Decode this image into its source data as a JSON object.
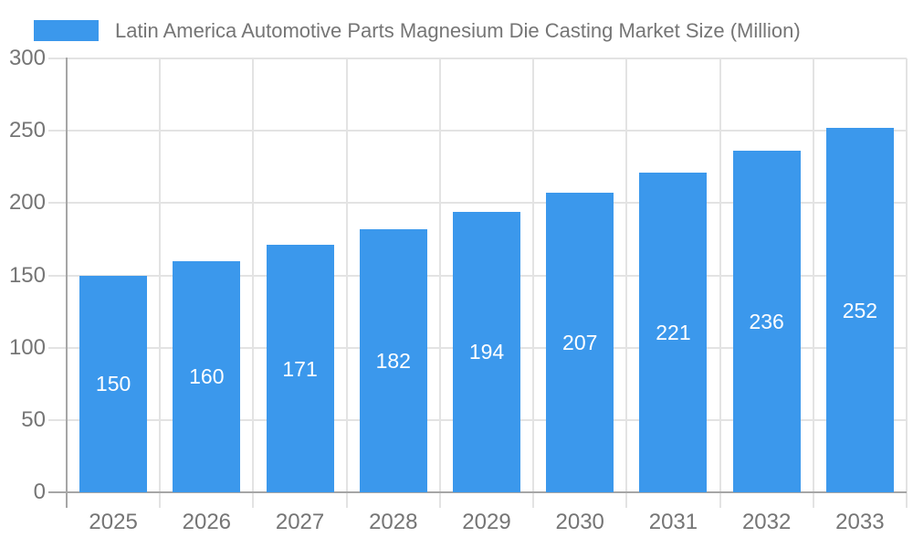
{
  "chart_data": {
    "type": "bar",
    "title": "Latin America Automotive Parts Magnesium Die Casting Market Size (Million)",
    "categories": [
      "2025",
      "2026",
      "2027",
      "2028",
      "2029",
      "2030",
      "2031",
      "2032",
      "2033"
    ],
    "values": [
      150,
      160,
      171,
      182,
      194,
      207,
      221,
      236,
      252
    ],
    "xlabel": "",
    "ylabel": "",
    "ylim": [
      0,
      300
    ],
    "yticks": [
      "0",
      "50",
      "100",
      "150",
      "200",
      "250",
      "300"
    ],
    "grid": true,
    "legend_position": "top-left",
    "colors": {
      "bar": "#3B98EC",
      "bar_label": "#FFFFFF",
      "text": "#757575",
      "grid": "#E3E3E3",
      "axis": "#A6A6A6",
      "background": "#FFFFFF"
    }
  }
}
